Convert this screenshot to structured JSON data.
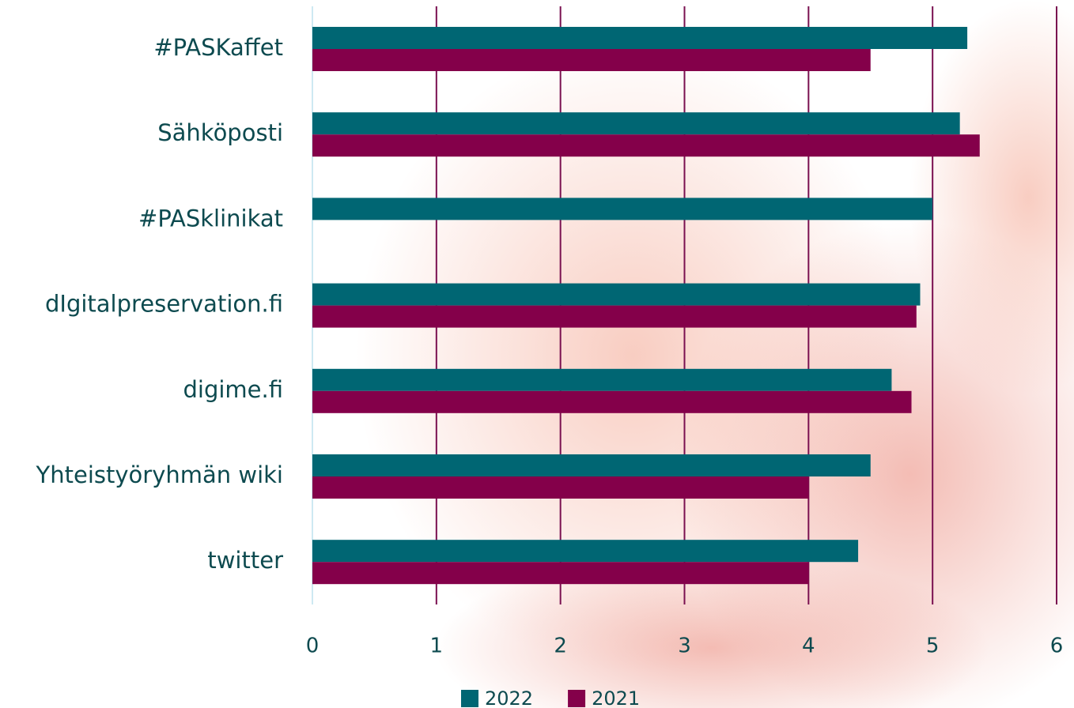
{
  "chart_data": {
    "type": "hbar",
    "categories": [
      "#PASKaffet",
      "Sähköposti",
      "#PASklinikat",
      "dIgitalpreservation.fi",
      "digime.fi",
      "Yhteistyöryhmän wiki",
      "twitter"
    ],
    "series": [
      {
        "name": "2022",
        "color": "#006673",
        "values": [
          5.28,
          5.22,
          5.0,
          4.9,
          4.67,
          4.5,
          4.4
        ]
      },
      {
        "name": "2021",
        "color": "#84004a",
        "values": [
          4.5,
          5.38,
          null,
          4.87,
          4.83,
          4.0,
          4.0
        ]
      }
    ],
    "xlim": [
      0,
      6
    ],
    "xticks": [
      0,
      1,
      2,
      3,
      4,
      5,
      6
    ],
    "grid": true,
    "legend": "bottom"
  }
}
